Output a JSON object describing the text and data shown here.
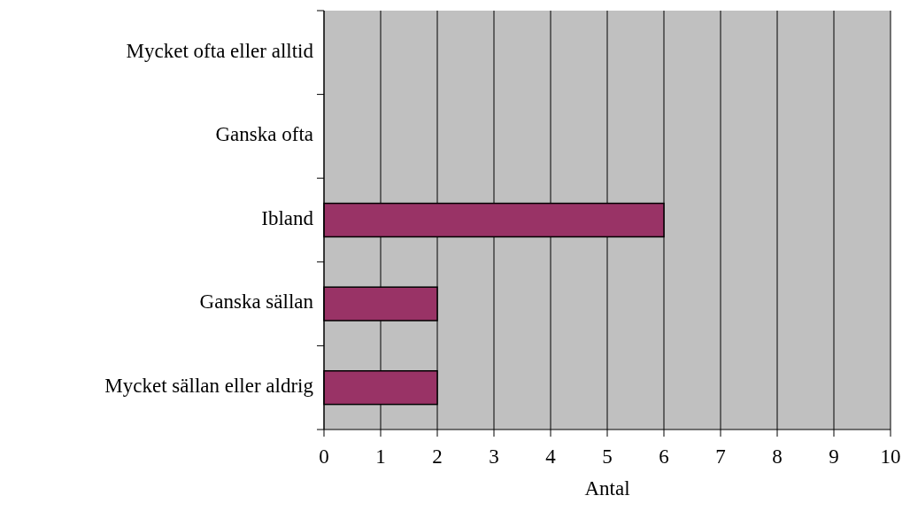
{
  "chart_data": {
    "type": "bar",
    "orientation": "horizontal",
    "xlabel": "Antal",
    "categories": [
      "Mycket ofta eller alltid",
      "Ganska ofta",
      "Ibland",
      "Ganska sällan",
      "Mycket sällan eller aldrig"
    ],
    "values": [
      0,
      0,
      6,
      2,
      2
    ],
    "color": "#993366",
    "xlim": [
      0,
      10
    ],
    "xticks": [
      0,
      1,
      2,
      3,
      4,
      5,
      6,
      7,
      8,
      9,
      10
    ],
    "grid": "x"
  }
}
